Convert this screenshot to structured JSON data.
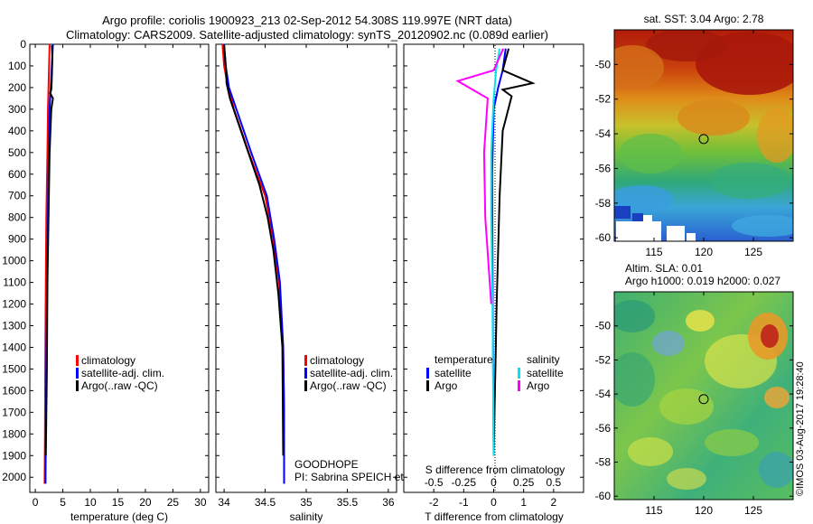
{
  "header": {
    "line1": "Argo profile: coriolis 1900923_213 02-Sep-2012 54.308S 119.997E (NRT data)",
    "line2": "Climatology: CARS2009. Satellite-adjusted climatology: synTS_20120902.nc (0.089d earlier)"
  },
  "colors": {
    "climatology": "#ff0000",
    "satellite": "#0000ff",
    "argo": "#000000",
    "sat_salinity": "#00e5ee",
    "argo_salinity": "#ff00ff"
  },
  "chart_data": [
    {
      "type": "line",
      "title": "",
      "xlabel": "temperature (deg C)",
      "ylabel": "",
      "xlim": [
        -1,
        31.5
      ],
      "ylim": [
        2070,
        0
      ],
      "xticks": [
        "0",
        "5",
        "10",
        "15",
        "20",
        "25",
        "30"
      ],
      "yticks": [
        "0",
        "100",
        "200",
        "300",
        "400",
        "500",
        "600",
        "700",
        "800",
        "900",
        "1000",
        "1100",
        "1200",
        "1300",
        "1400",
        "1500",
        "1600",
        "1700",
        "1800",
        "1900",
        "2000"
      ],
      "legend": {
        "position": "center-right",
        "entries": [
          "climatology",
          "satellite-adj. clim.",
          "Argo(..raw -QC)"
        ]
      },
      "series": [
        {
          "name": "climatology",
          "color": "#ff0000",
          "x": [
            2.6,
            2.5,
            2.4,
            2.3,
            2.2,
            2.0,
            1.9,
            1.8,
            1.75,
            1.7
          ],
          "depth": [
            0,
            100,
            200,
            300,
            500,
            800,
            1100,
            1500,
            1800,
            2030
          ]
        },
        {
          "name": "satellite-adj. clim.",
          "color": "#0000ff",
          "x": [
            3.2,
            3.0,
            2.8,
            2.6,
            2.45,
            2.3,
            2.15,
            2.0,
            1.9,
            1.85
          ],
          "depth": [
            0,
            100,
            200,
            300,
            500,
            800,
            1100,
            1500,
            1800,
            2030
          ]
        },
        {
          "name": "Argo(..raw -QC)",
          "color": "#000000",
          "x": [
            3.0,
            3.1,
            3.0,
            2.9,
            2.7,
            3.2,
            2.9,
            2.6,
            2.4,
            2.2,
            2.1,
            1.9
          ],
          "depth": [
            5,
            60,
            150,
            210,
            225,
            250,
            300,
            500,
            800,
            1100,
            1500,
            1900
          ]
        }
      ]
    },
    {
      "type": "line",
      "title": "",
      "xlabel": "salinity",
      "ylabel": "",
      "xlim": [
        33.9,
        36.1
      ],
      "ylim": [
        2070,
        0
      ],
      "xticks": [
        "34",
        "34.5",
        "35",
        "35.5",
        "36"
      ],
      "legend": {
        "position": "center-right",
        "entries": [
          "climatology",
          "satellite-adj. clim.",
          "Argo(..raw -QC)"
        ]
      },
      "annotation": [
        "GOODHOPE",
        "PI: Sabrina SPEICH et Michel ARHAN"
      ],
      "series": [
        {
          "name": "climatology",
          "color": "#ff0000",
          "x": [
            33.98,
            34.0,
            34.05,
            34.12,
            34.3,
            34.5,
            34.6,
            34.67,
            34.72,
            34.73,
            34.73
          ],
          "depth": [
            0,
            100,
            200,
            300,
            500,
            700,
            900,
            1100,
            1400,
            1700,
            2030
          ]
        },
        {
          "name": "satellite-adj. clim.",
          "color": "#0000ff",
          "x": [
            34.0,
            34.02,
            34.06,
            34.15,
            34.33,
            34.52,
            34.61,
            34.68,
            34.72,
            34.73,
            34.73
          ],
          "depth": [
            0,
            100,
            200,
            300,
            500,
            700,
            900,
            1100,
            1400,
            1700,
            2030
          ]
        },
        {
          "name": "Argo(..raw -QC)",
          "color": "#000000",
          "x": [
            34.0,
            34.02,
            34.03,
            34.07,
            34.25,
            34.43,
            34.53,
            34.6,
            34.66,
            34.71,
            34.72
          ],
          "depth": [
            5,
            100,
            180,
            250,
            450,
            650,
            800,
            950,
            1150,
            1400,
            1900
          ]
        }
      ]
    },
    {
      "type": "line",
      "title": "",
      "xlabel": "T difference from climatology",
      "xlabel2": "S difference from climatology",
      "ylabel": "",
      "xlim": [
        -3,
        3
      ],
      "xlim_top": [
        -0.75,
        0.75
      ],
      "ylim": [
        2070,
        0
      ],
      "xticks": [
        "-2",
        "-1",
        "0",
        "1",
        "2"
      ],
      "xticks2": [
        "-0.5",
        "-0.25",
        "0",
        "0.25",
        "0.5"
      ],
      "legend": {
        "position": "center",
        "headers": [
          "temperature",
          "salinity"
        ],
        "entries": [
          "satellite",
          "Argo",
          "satellite",
          "Argo"
        ]
      },
      "series": [
        {
          "name": "temperature satellite",
          "color": "#0000ff",
          "x": [
            0.4,
            0.3,
            0.15,
            0.0,
            -0.05,
            -0.03,
            0.0
          ],
          "depth": [
            20,
            120,
            200,
            300,
            600,
            1200,
            1900
          ]
        },
        {
          "name": "temperature Argo",
          "color": "#000000",
          "x": [
            0.5,
            0.3,
            1.3,
            0.3,
            0.6,
            0.3,
            0.2,
            0.1,
            0.0
          ],
          "depth": [
            20,
            120,
            180,
            210,
            240,
            400,
            700,
            1200,
            1900
          ]
        },
        {
          "name": "salinity satellite",
          "color": "#00e5ee",
          "x": [
            0.05,
            0.02,
            0.0,
            -0.02,
            -0.02,
            -0.01,
            0.0
          ],
          "depth": [
            20,
            120,
            250,
            500,
            800,
            1200,
            1900
          ]
        },
        {
          "name": "salinity Argo",
          "color": "#ff00ff",
          "x": [
            0.08,
            0.0,
            -0.3,
            -0.05,
            -0.08,
            -0.07,
            -0.02
          ],
          "depth": [
            20,
            120,
            170,
            250,
            500,
            800,
            1200
          ]
        }
      ]
    },
    {
      "type": "heatmap",
      "title": "sat. SST: 3.04  Argo: 2.78",
      "xlim": [
        111,
        129
      ],
      "ylim": [
        -60.2,
        -48
      ],
      "xticks": [
        "115",
        "120",
        "125"
      ],
      "yticks": [
        "-50",
        "-52",
        "-54",
        "-56",
        "-58",
        "-60"
      ],
      "marker": {
        "lon": 120.0,
        "lat": -54.3
      }
    },
    {
      "type": "heatmap",
      "title": "Altim. SLA: 0.01",
      "title2": "Argo h1000: 0.019  h2000: 0.027",
      "xlim": [
        111,
        129
      ],
      "ylim": [
        -60.2,
        -48
      ],
      "xticks": [
        "115",
        "120",
        "125"
      ],
      "yticks": [
        "-50",
        "-52",
        "-54",
        "-56",
        "-58",
        "-60"
      ],
      "marker": {
        "lon": 120.0,
        "lat": -54.3
      },
      "side_label": "©IMOS 03-Aug-2017 19:28:40"
    }
  ]
}
